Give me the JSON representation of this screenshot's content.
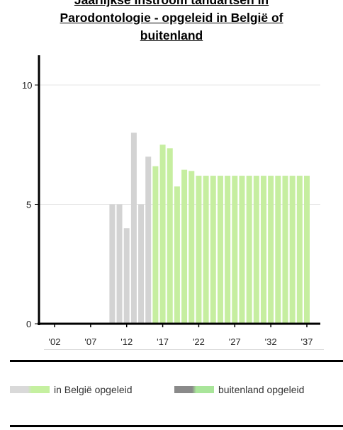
{
  "title_lines": [
    "Jaarlijkse instroom tandartsen in",
    "Parodontologie - opgeleid in België of",
    "buitenland"
  ],
  "legend": [
    {
      "label": "in België opgeleid",
      "from": "#d9d9d9",
      "to": "#c5f0a0"
    },
    {
      "label": "buitenland opgeleid",
      "from": "#8a8a8a",
      "to": "#a9e59a"
    }
  ],
  "colors": {
    "historic": "#d3d3d3",
    "projected": "#c6eea0",
    "axis": "#000000",
    "grid": "#e5e5e5"
  },
  "chart_data": {
    "type": "bar",
    "ylim": [
      0,
      11
    ],
    "yticks": [
      0,
      5,
      10
    ],
    "xlim": [
      1999,
      2038
    ],
    "xticks": [
      2002,
      2007,
      2012,
      2017,
      2022,
      2027,
      2032,
      2037
    ],
    "xtick_labels": [
      "'02",
      "'07",
      "'12",
      "'17",
      "'22",
      "'27",
      "'32",
      "'37"
    ],
    "series": [
      {
        "key": "historic",
        "x": [
          2010,
          2011,
          2012,
          2013,
          2014,
          2015
        ],
        "values": [
          5,
          5,
          4,
          8,
          5,
          7
        ]
      },
      {
        "key": "projected",
        "x": [
          2016,
          2017,
          2018,
          2019,
          2020,
          2021,
          2022,
          2023,
          2024,
          2025,
          2026,
          2027,
          2028,
          2029,
          2030,
          2031,
          2032,
          2033,
          2034,
          2035,
          2036,
          2037
        ],
        "values": [
          6.6,
          7.5,
          7.35,
          5.75,
          6.45,
          6.4,
          6.2,
          6.2,
          6.2,
          6.2,
          6.2,
          6.2,
          6.2,
          6.2,
          6.2,
          6.2,
          6.2,
          6.2,
          6.2,
          6.2,
          6.2,
          6.2
        ]
      }
    ]
  }
}
